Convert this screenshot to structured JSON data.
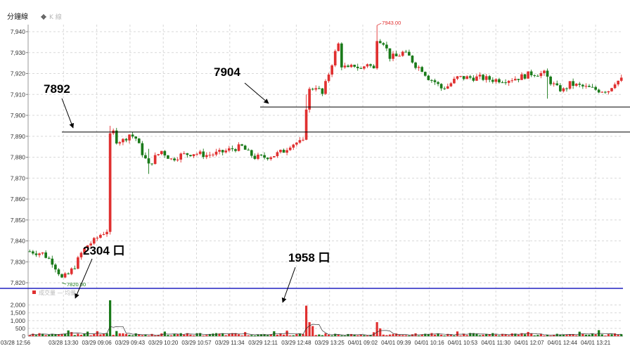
{
  "header": {
    "active_tab": "分鐘線",
    "gear_icon": "gear-icon",
    "inactive_tab": "K 線"
  },
  "volume_legend": {
    "text": "成交量 — 均量",
    "color": "#e03030"
  },
  "colors": {
    "up": "#e03030",
    "down": "#1a7a1a",
    "separator": "#2020c0",
    "grid": "#d8d8d8"
  },
  "chart_data": [
    {
      "type": "candlestick",
      "title": "",
      "ylim": [
        7815,
        7945
      ],
      "y_ticks": [
        "7,940",
        "7,930",
        "7,920",
        "7,910",
        "7,900",
        "7,890",
        "7,880",
        "7,870",
        "7,860",
        "7,850",
        "7,840",
        "7,830",
        "7,820"
      ],
      "x_ticks": [
        "03/28 12:56",
        "03/28 13:30",
        "03/29 09:06",
        "03/29 09:43",
        "03/29 10:20",
        "03/29 10:57",
        "03/29 11:34",
        "03/29 12:11",
        "03/29 12:48",
        "03/29 13:25",
        "04/01 09:02",
        "04/01 09:39",
        "04/01 10:16",
        "04/01 10:53",
        "04/01 11:30",
        "04/01 12:07",
        "04/01 12:44",
        "04/01 13:21"
      ],
      "price_path": [
        [
          0,
          7835
        ],
        [
          4,
          7834
        ],
        [
          7,
          7830
        ],
        [
          9,
          7825
        ],
        [
          10,
          7822
        ],
        [
          12,
          7824
        ],
        [
          14,
          7828
        ],
        [
          16,
          7834
        ],
        [
          18,
          7838
        ],
        [
          20,
          7840
        ],
        [
          22,
          7843
        ],
        [
          24,
          7845
        ],
        [
          25,
          7890
        ],
        [
          26,
          7892
        ],
        [
          27,
          7888
        ],
        [
          29,
          7888
        ],
        [
          31,
          7891
        ],
        [
          33,
          7889
        ],
        [
          35,
          7882
        ],
        [
          37,
          7876
        ],
        [
          39,
          7880
        ],
        [
          41,
          7883
        ],
        [
          44,
          7879
        ],
        [
          47,
          7881
        ],
        [
          51,
          7882
        ],
        [
          55,
          7881
        ],
        [
          59,
          7882
        ],
        [
          63,
          7884
        ],
        [
          66,
          7885
        ],
        [
          68,
          7882
        ],
        [
          70,
          7880
        ],
        [
          73,
          7880
        ],
        [
          76,
          7881
        ],
        [
          79,
          7883
        ],
        [
          81,
          7886
        ],
        [
          83,
          7887
        ],
        [
          85,
          7887
        ],
        [
          86,
          7904
        ],
        [
          87,
          7912
        ],
        [
          89,
          7914
        ],
        [
          91,
          7910
        ],
        [
          93,
          7920
        ],
        [
          95,
          7930
        ],
        [
          96,
          7934
        ],
        [
          97,
          7924
        ],
        [
          99,
          7922
        ],
        [
          101,
          7924
        ],
        [
          103,
          7922
        ],
        [
          105,
          7925
        ],
        [
          107,
          7922
        ],
        [
          108,
          7937
        ],
        [
          110,
          7935
        ],
        [
          112,
          7928
        ],
        [
          114,
          7928
        ],
        [
          116,
          7930
        ],
        [
          118,
          7928
        ],
        [
          120,
          7924
        ],
        [
          122,
          7922
        ],
        [
          124,
          7918
        ],
        [
          126,
          7916
        ],
        [
          128,
          7913
        ],
        [
          130,
          7914
        ],
        [
          133,
          7918
        ],
        [
          136,
          7918
        ],
        [
          140,
          7918
        ],
        [
          144,
          7917
        ],
        [
          148,
          7917
        ],
        [
          152,
          7918
        ],
        [
          156,
          7920
        ],
        [
          160,
          7920
        ],
        [
          162,
          7916
        ],
        [
          164,
          7913
        ],
        [
          166,
          7912
        ],
        [
          168,
          7915
        ],
        [
          171,
          7914
        ],
        [
          174,
          7913
        ],
        [
          177,
          7912
        ],
        [
          180,
          7912
        ],
        [
          182,
          7916
        ],
        [
          184,
          7917
        ]
      ],
      "price_spikes": [
        {
          "x": 25,
          "low": 7873,
          "high": 7895
        },
        {
          "x": 27,
          "low": 7887,
          "high": 7894
        },
        {
          "x": 37,
          "low": 7872,
          "high": 7884
        },
        {
          "x": 86,
          "low": 7900,
          "high": 7910
        },
        {
          "x": 108,
          "low": 7925,
          "high": 7943
        },
        {
          "x": 161,
          "low": 7908,
          "high": 7919
        }
      ],
      "labels": {
        "min_price": "7820.00",
        "max_price": "7943.00"
      },
      "annotations": [
        {
          "text": "7892",
          "price": 7892
        },
        {
          "text": "7904",
          "price": 7904
        }
      ]
    },
    {
      "type": "bar",
      "title": "",
      "ylim": [
        0,
        2300
      ],
      "y_ticks": [
        "2,000",
        "1,500",
        "1,000",
        "500",
        "0"
      ],
      "volume_spikes": [
        {
          "x": 25,
          "value": 2304
        },
        {
          "x": 86,
          "value": 1958
        },
        {
          "x": 87,
          "value": 900
        },
        {
          "x": 88,
          "value": 650
        },
        {
          "x": 108,
          "value": 900
        },
        {
          "x": 109,
          "value": 500
        }
      ],
      "annotations": [
        {
          "text": "2304 口",
          "value": 2304
        },
        {
          "text": "1958 口",
          "value": 1958
        }
      ]
    }
  ]
}
